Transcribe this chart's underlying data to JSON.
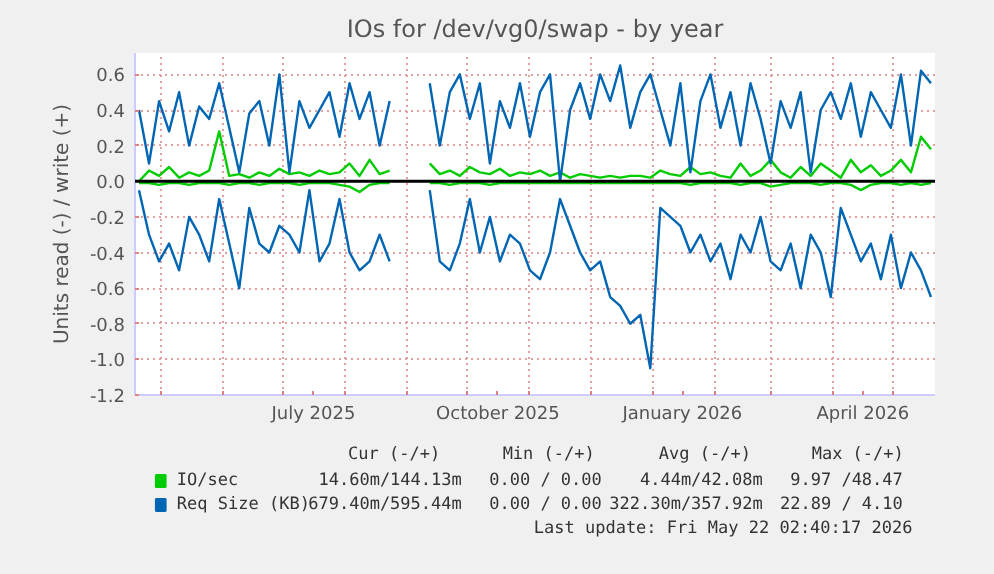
{
  "chart_data": {
    "type": "line",
    "title": "IOs for /dev/vg0/swap - by year",
    "ylabel": "Units read (-) / write (+)",
    "x": [
      "2025-04-20",
      "2025-04-25",
      "2025-04-30",
      "2025-05-05",
      "2025-05-10",
      "2025-05-15",
      "2025-05-20",
      "2025-05-25",
      "2025-05-30",
      "2025-06-04",
      "2025-06-09",
      "2025-06-14",
      "2025-06-19",
      "2025-06-24",
      "2025-06-29",
      "2025-07-04",
      "2025-07-09",
      "2025-07-14",
      "2025-07-19",
      "2025-07-24",
      "2025-07-29",
      "2025-08-03",
      "2025-08-08",
      "2025-08-13",
      "2025-08-18",
      "2025-08-23",
      "2025-08-28",
      "2025-09-02",
      "2025-09-07",
      "2025-09-12",
      "2025-09-17",
      "2025-09-22",
      "2025-09-27",
      "2025-10-02",
      "2025-10-07",
      "2025-10-12",
      "2025-10-17",
      "2025-10-22",
      "2025-10-27",
      "2025-11-01",
      "2025-11-06",
      "2025-11-11",
      "2025-11-16",
      "2025-11-21",
      "2025-11-26",
      "2025-12-01",
      "2025-12-06",
      "2025-12-11",
      "2025-12-16",
      "2025-12-21",
      "2025-12-26",
      "2025-12-31",
      "2026-01-05",
      "2026-01-10",
      "2026-01-15",
      "2026-01-20",
      "2026-01-25",
      "2026-01-30",
      "2026-02-04",
      "2026-02-09",
      "2026-02-14",
      "2026-02-19",
      "2026-02-24",
      "2026-03-01",
      "2026-03-06",
      "2026-03-11",
      "2026-03-16",
      "2026-03-21",
      "2026-03-26",
      "2026-03-31",
      "2026-04-05",
      "2026-04-10",
      "2026-04-15",
      "2026-04-20",
      "2026-04-25",
      "2026-04-30",
      "2026-05-05",
      "2026-05-10",
      "2026-05-15",
      "2026-05-20"
    ],
    "series": [
      {
        "name": "IO/sec",
        "color": "#00cc00",
        "values": [
          0.0,
          0.06,
          0.03,
          0.08,
          0.02,
          0.05,
          0.03,
          0.06,
          0.28,
          0.03,
          0.04,
          0.02,
          0.05,
          0.03,
          0.07,
          0.04,
          0.05,
          0.03,
          0.06,
          0.04,
          0.05,
          0.1,
          0.03,
          0.12,
          0.04,
          0.06,
          null,
          null,
          null,
          0.1,
          0.04,
          0.06,
          0.03,
          0.08,
          0.05,
          0.04,
          0.07,
          0.03,
          0.05,
          0.04,
          0.06,
          0.03,
          0.05,
          0.02,
          0.04,
          0.03,
          0.02,
          0.03,
          0.02,
          0.03,
          0.03,
          0.02,
          0.06,
          0.04,
          0.03,
          0.08,
          0.04,
          0.05,
          0.03,
          0.02,
          0.1,
          0.03,
          0.06,
          0.12,
          0.05,
          0.02,
          0.08,
          0.03,
          0.1,
          0.06,
          0.02,
          0.12,
          0.05,
          0.09,
          0.03,
          0.06,
          0.12,
          0.05,
          0.25,
          0.18
        ]
      },
      {
        "color": "#00cc00",
        "values": [
          -0.01,
          -0.01,
          -0.02,
          -0.01,
          -0.01,
          -0.02,
          -0.01,
          -0.01,
          -0.01,
          -0.02,
          -0.01,
          -0.01,
          -0.02,
          -0.01,
          -0.01,
          -0.01,
          -0.02,
          -0.01,
          -0.01,
          -0.01,
          -0.02,
          -0.03,
          -0.06,
          -0.02,
          -0.01,
          -0.01,
          null,
          null,
          null,
          -0.01,
          -0.01,
          -0.02,
          -0.01,
          -0.01,
          -0.01,
          -0.02,
          -0.01,
          -0.01,
          -0.01,
          -0.01,
          -0.01,
          -0.01,
          -0.01,
          -0.01,
          -0.01,
          -0.01,
          -0.01,
          -0.01,
          -0.01,
          -0.01,
          -0.01,
          -0.01,
          -0.01,
          -0.01,
          -0.01,
          -0.02,
          -0.01,
          -0.01,
          -0.01,
          -0.01,
          -0.02,
          -0.01,
          -0.01,
          -0.03,
          -0.02,
          -0.01,
          -0.01,
          -0.01,
          -0.02,
          -0.01,
          -0.01,
          -0.02,
          -0.05,
          -0.02,
          -0.01,
          -0.01,
          -0.02,
          -0.01,
          -0.02,
          -0.01
        ]
      },
      {
        "name": "Req Size (KB)",
        "color": "#0066b3",
        "values": [
          0.4,
          0.1,
          0.45,
          0.28,
          0.5,
          0.2,
          0.42,
          0.35,
          0.55,
          0.3,
          0.05,
          0.38,
          0.45,
          0.2,
          0.6,
          0.05,
          0.45,
          0.3,
          0.4,
          0.5,
          0.25,
          0.55,
          0.35,
          0.5,
          0.2,
          0.45,
          null,
          null,
          null,
          0.55,
          0.2,
          0.5,
          0.6,
          0.35,
          0.55,
          0.1,
          0.45,
          0.3,
          0.55,
          0.25,
          0.5,
          0.6,
          0.0,
          0.4,
          0.55,
          0.35,
          0.6,
          0.45,
          0.65,
          0.3,
          0.5,
          0.6,
          0.4,
          0.2,
          0.55,
          0.05,
          0.45,
          0.6,
          0.3,
          0.5,
          0.2,
          0.55,
          0.35,
          0.1,
          0.45,
          0.3,
          0.5,
          0.05,
          0.4,
          0.5,
          0.35,
          0.55,
          0.25,
          0.5,
          0.4,
          0.3,
          0.6,
          0.2,
          0.62,
          0.55
        ]
      },
      {
        "color": "#0066b3",
        "values": [
          -0.05,
          -0.3,
          -0.45,
          -0.35,
          -0.5,
          -0.2,
          -0.3,
          -0.45,
          -0.1,
          -0.35,
          -0.6,
          -0.15,
          -0.35,
          -0.4,
          -0.25,
          -0.3,
          -0.4,
          -0.05,
          -0.45,
          -0.35,
          -0.1,
          -0.4,
          -0.5,
          -0.45,
          -0.3,
          -0.45,
          null,
          null,
          null,
          -0.05,
          -0.45,
          -0.5,
          -0.35,
          -0.1,
          -0.4,
          -0.2,
          -0.45,
          -0.3,
          -0.35,
          -0.5,
          -0.55,
          -0.4,
          -0.1,
          -0.25,
          -0.4,
          -0.5,
          -0.45,
          -0.65,
          -0.7,
          -0.8,
          -0.75,
          -1.05,
          -0.15,
          -0.2,
          -0.25,
          -0.4,
          -0.3,
          -0.45,
          -0.35,
          -0.55,
          -0.3,
          -0.4,
          -0.2,
          -0.45,
          -0.5,
          -0.35,
          -0.6,
          -0.3,
          -0.4,
          -0.65,
          -0.15,
          -0.3,
          -0.45,
          -0.35,
          -0.55,
          -0.3,
          -0.6,
          -0.4,
          -0.5,
          -0.65
        ]
      }
    ],
    "xlim": [
      "2025-04-18",
      "2026-05-22"
    ],
    "xticks": [
      {
        "value": "2025-05-01",
        "label": null
      },
      {
        "value": "2025-06-01",
        "label": null
      },
      {
        "value": "2025-07-01",
        "label": null
      },
      {
        "value": "2025-07-16",
        "label": "July 2025"
      },
      {
        "value": "2025-08-01",
        "label": null
      },
      {
        "value": "2025-09-01",
        "label": null
      },
      {
        "value": "2025-10-01",
        "label": null
      },
      {
        "value": "2025-10-16",
        "label": "October 2025"
      },
      {
        "value": "2025-11-01",
        "label": null
      },
      {
        "value": "2025-12-01",
        "label": null
      },
      {
        "value": "2026-01-01",
        "label": null
      },
      {
        "value": "2026-01-16",
        "label": "January 2026"
      },
      {
        "value": "2026-02-01",
        "label": null
      },
      {
        "value": "2026-03-01",
        "label": null
      },
      {
        "value": "2026-04-01",
        "label": null
      },
      {
        "value": "2026-04-16",
        "label": "April 2026"
      },
      {
        "value": "2026-05-01",
        "label": null
      }
    ],
    "ylim": [
      -1.2,
      0.72
    ],
    "yticks": [
      {
        "value": -1.2,
        "label": "-1.2"
      },
      {
        "value": -1.0,
        "label": "-1.0"
      },
      {
        "value": -0.8,
        "label": "-0.8"
      },
      {
        "value": -0.6,
        "label": "-0.6"
      },
      {
        "value": -0.4,
        "label": "-0.4"
      },
      {
        "value": -0.2,
        "label": "-0.2"
      },
      {
        "value": 0,
        "label": "0.0"
      },
      {
        "value": 0.2,
        "label": "0.2"
      },
      {
        "value": 0.4,
        "label": "0.4"
      },
      {
        "value": 0.6,
        "label": "0.6"
      }
    ],
    "ref_lines": [
      {
        "axis": "y",
        "value": 0,
        "color": "#000000"
      }
    ],
    "grid": true,
    "legend": "bottom",
    "annotations": [
      "Cur (-/+)",
      "Min (-/+)",
      "Avg (-/+)",
      "Max (-/+)",
      "14.60m/144.13m",
      "0.00 / 0.00",
      "4.44m/42.08m",
      "9.97 /48.47",
      "679.40m/595.44m",
      "0.00 / 0.00",
      "322.30m/357.92m",
      "22.89 / 4.10",
      "Last update: Fri May 22 02:40:17 2026"
    ]
  }
}
